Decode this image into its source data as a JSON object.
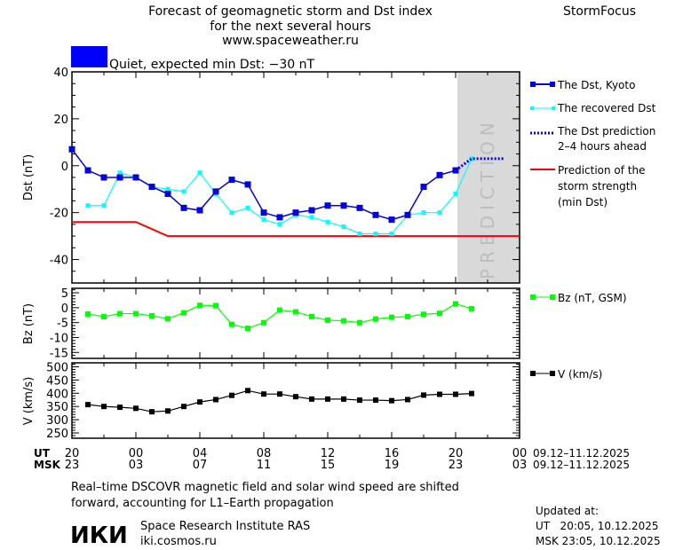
{
  "header": {
    "title_lines": [
      "Forecast of geomagnetic storm and Dst index",
      "for the next several hours",
      "www.spaceweather.ru"
    ],
    "brand": "StormFocus",
    "status_text": "Quiet, expected min Dst: −30 nT",
    "status_color": "#0000ff"
  },
  "prediction_label": "PREDICTION",
  "legend": {
    "dst": "The Dst, Kyoto",
    "recovered": "The recovered Dst",
    "prediction_1": "The Dst prediction",
    "prediction_2": "2–4 hours ahead",
    "storm_1": "Prediction of the",
    "storm_2": "storm strength",
    "storm_3": "(min Dst)",
    "bz": "Bz (nT, GSM)",
    "v": "V (km/s)"
  },
  "time_axis": {
    "ut_label": "UT",
    "msk_label": "MSK",
    "ut_ticks": [
      "20",
      "00",
      "04",
      "08",
      "12",
      "16",
      "20",
      "00"
    ],
    "msk_ticks": [
      "23",
      "03",
      "07",
      "11",
      "15",
      "19",
      "23",
      "03"
    ],
    "date_range_ut": "09.12–11.12.2025",
    "date_range_msk": "09.12–11.12.2025"
  },
  "footer": {
    "note_1": "Real–time DSCOVR magnetic field and solar wind speed are shifted",
    "note_2": "forward, accounting for L1–Earth propagation",
    "logo": "ИКИ",
    "institute": "Space Research Institute RAS",
    "site": "iki.cosmos.ru",
    "updated_label": "Updated at:",
    "updated_ut": "UT   20:05, 10.12.2025",
    "updated_msk": "MSK 23:05, 10.12.2025"
  },
  "colors": {
    "dst": "#0000e0",
    "recovered": "#00ffff",
    "prediction": "#0000ff",
    "storm": "#ff0000",
    "bz": "#00ff00",
    "v": "#000000",
    "prediction_zone": "#d9d9d9"
  },
  "chart_data": [
    {
      "type": "line",
      "ylabel": "Dst (nT)",
      "ylim": [
        -50,
        40
      ],
      "yticks": [
        "40",
        "20",
        "0",
        "-20",
        "-40"
      ],
      "ytick_values": [
        40,
        20,
        0,
        -20,
        -40
      ],
      "xlim_hours_ut": [
        20,
        48
      ],
      "prediction_zone_hours": [
        44,
        48
      ],
      "series": [
        {
          "name": "The Dst, Kyoto",
          "hours": [
            20,
            21,
            22,
            23,
            24,
            25,
            26,
            27,
            28,
            29,
            30,
            31,
            32,
            33,
            34,
            35,
            36,
            37,
            38,
            39,
            40,
            41,
            42,
            43,
            44
          ],
          "values": [
            7,
            -2,
            -5,
            -5,
            -5,
            -9,
            -12,
            -18,
            -19,
            -11,
            -6,
            -8,
            -20,
            -22,
            -20,
            -19,
            -17,
            -17,
            -18,
            -21,
            -23,
            -21,
            -9,
            -4,
            -2
          ]
        },
        {
          "name": "The recovered Dst",
          "hours": [
            21,
            22,
            23,
            24,
            25,
            26,
            27,
            28,
            29,
            30,
            31,
            32,
            33,
            34,
            35,
            36,
            37,
            38,
            39,
            40,
            41,
            42,
            43,
            44,
            45
          ],
          "values": [
            -17,
            -17,
            -3,
            -5,
            -9,
            -10,
            -11,
            -3,
            -12,
            -20,
            -18,
            -23,
            -25,
            -21,
            -22,
            -24,
            -26,
            -29,
            -29,
            -29,
            -21,
            -20,
            -20,
            -12,
            3
          ]
        },
        {
          "name": "The Dst prediction",
          "hours": [
            44,
            45,
            47
          ],
          "values": [
            -2,
            3,
            3
          ]
        },
        {
          "name": "Prediction of the storm strength",
          "hours": [
            20,
            24,
            26,
            48
          ],
          "values": [
            -24,
            -24,
            -30,
            -30
          ]
        }
      ]
    },
    {
      "type": "line",
      "ylabel": "Bz (nT)",
      "ylim": [
        -17,
        6.5
      ],
      "yticks": [
        "5",
        "0",
        "-5",
        "-10",
        "-15"
      ],
      "ytick_values": [
        5,
        0,
        -5,
        -10,
        -15
      ],
      "series": [
        {
          "name": "Bz (nT, GSM)",
          "hours": [
            21,
            22,
            23,
            24,
            25,
            26,
            27,
            28,
            29,
            30,
            31,
            32,
            33,
            34,
            35,
            36,
            37,
            38,
            39,
            40,
            41,
            42,
            43,
            44,
            45
          ],
          "values": [
            -2.1,
            -3,
            -2,
            -2,
            -2.7,
            -3.7,
            -1.7,
            0.8,
            0.7,
            -5.6,
            -6.9,
            -5,
            -0.8,
            -1.4,
            -3,
            -4.2,
            -4.4,
            -5,
            -3.8,
            -3.2,
            -3,
            -2.2,
            -1.9,
            1.3,
            -0.3
          ]
        }
      ]
    },
    {
      "type": "line",
      "ylabel": "V (km/s)",
      "ylim": [
        230,
        515
      ],
      "yticks": [
        "500",
        "450",
        "400",
        "350",
        "300",
        "250"
      ],
      "ytick_values": [
        500,
        450,
        400,
        350,
        300,
        250
      ],
      "series": [
        {
          "name": "V (km/s)",
          "hours": [
            21,
            22,
            23,
            24,
            25,
            26,
            27,
            28,
            29,
            30,
            31,
            32,
            33,
            34,
            35,
            36,
            37,
            38,
            39,
            40,
            41,
            42,
            43,
            44,
            45
          ],
          "values": [
            357,
            350,
            347,
            343,
            330,
            333,
            350,
            367,
            376,
            392,
            410,
            397,
            397,
            387,
            378,
            378,
            378,
            374,
            374,
            372,
            376,
            393,
            396,
            396,
            399
          ]
        }
      ]
    }
  ]
}
